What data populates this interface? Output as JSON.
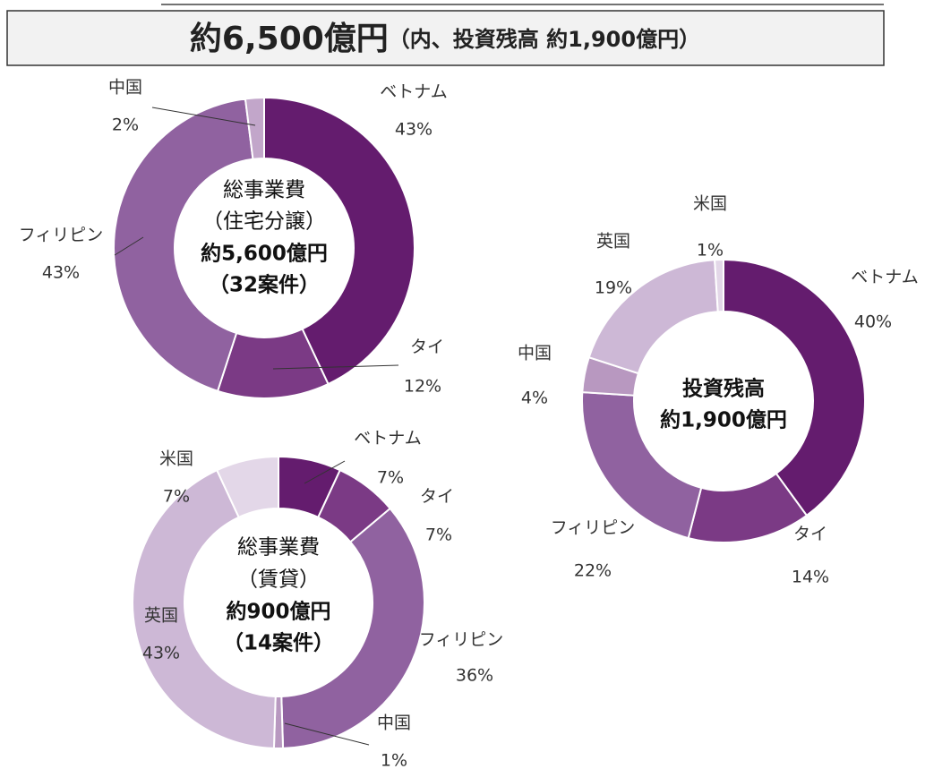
{
  "header": {
    "main": "約6,500億円",
    "sub": "（内、投資残高 約1,900億円）"
  },
  "chart_data": [
    {
      "type": "pie",
      "donut": true,
      "center_label": [
        "総事業費",
        "（住宅分譲）",
        "約5,600億円",
        "（32案件）"
      ],
      "categories": [
        "ベトナム",
        "タイ",
        "フィリピン",
        "中国"
      ],
      "values": [
        43,
        12,
        43,
        2
      ],
      "value_labels": [
        "43%",
        "12%",
        "43%",
        "2%"
      ],
      "colors": [
        "#641c6e",
        "#7b3a85",
        "#9062a0",
        "#c2a6ca"
      ]
    },
    {
      "type": "pie",
      "donut": true,
      "center_label": [
        "総事業費",
        "（賃貸）",
        "約900億円",
        "（14案件）"
      ],
      "categories": [
        "ベトナム",
        "タイ",
        "フィリピン",
        "中国",
        "英国",
        "米国"
      ],
      "values": [
        7,
        7,
        36,
        1,
        43,
        7
      ],
      "value_labels": [
        "7%",
        "7%",
        "36%",
        "1%",
        "43%",
        "7%"
      ],
      "colors": [
        "#641c6e",
        "#7b3a85",
        "#9062a0",
        "#b898c0",
        "#cdb8d6",
        "#e3d7e8"
      ]
    },
    {
      "type": "pie",
      "donut": true,
      "center_label": [
        "投資残高",
        "約1,900億円"
      ],
      "categories": [
        "ベトナム",
        "タイ",
        "フィリピン",
        "中国",
        "英国",
        "米国"
      ],
      "values": [
        40,
        14,
        22,
        4,
        19,
        1
      ],
      "value_labels": [
        "40%",
        "14%",
        "22%",
        "4%",
        "19%",
        "1%"
      ],
      "colors": [
        "#641c6e",
        "#7b3a85",
        "#9062a0",
        "#b898c0",
        "#cdb8d6",
        "#e3d7e8"
      ]
    }
  ]
}
